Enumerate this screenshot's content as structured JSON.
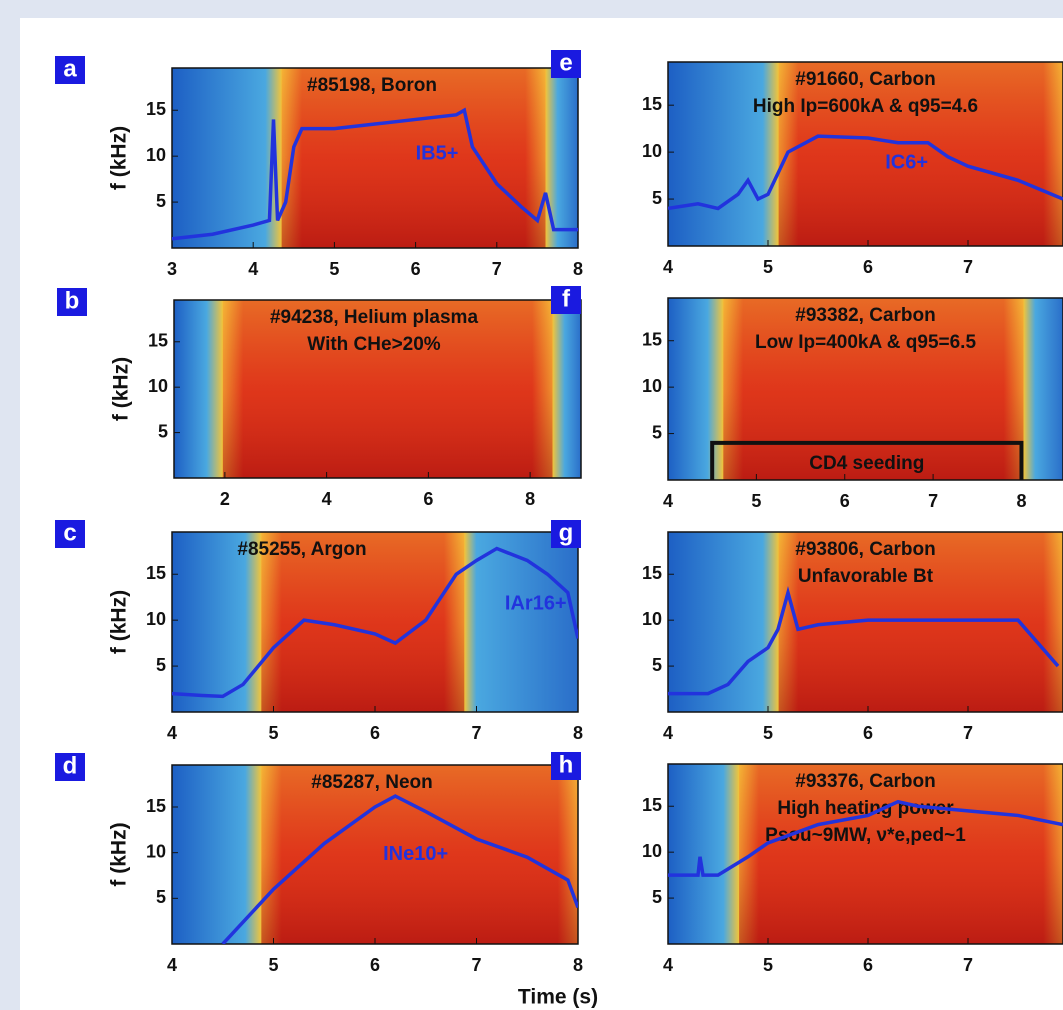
{
  "chart_data": [
    {
      "type": "line",
      "panel": "a",
      "titles": [
        "#85198, Boron"
      ],
      "ylabel": "f (kHz)",
      "xlim": [
        3,
        8
      ],
      "ylim": [
        0,
        19.6
      ],
      "xticks": [
        3,
        4,
        5,
        6,
        7,
        8
      ],
      "yticks": [
        5,
        10,
        15
      ],
      "series": [
        {
          "name": "IB5+",
          "color": "#2233dd",
          "x": [
            3,
            3.5,
            4,
            4.2,
            4.25,
            4.3,
            4.4,
            4.5,
            4.6,
            5,
            5.5,
            6,
            6.5,
            6.6,
            6.7,
            7,
            7.3,
            7.5,
            7.6,
            7.7,
            8
          ],
          "values": [
            1,
            1.5,
            2.5,
            3,
            14,
            3,
            5,
            11,
            13,
            13,
            13.5,
            14,
            14.5,
            15,
            11,
            7,
            4.5,
            3,
            6,
            2,
            2
          ]
        }
      ]
    },
    {
      "type": "spectrogram",
      "panel": "b",
      "titles": [
        "#94238, Helium plasma",
        "With CHe>20%"
      ],
      "ylabel": "f (kHz)",
      "xlim": [
        1,
        9
      ],
      "ylim": [
        0,
        19.6
      ],
      "xticks": [
        2,
        4,
        6,
        8
      ],
      "yticks": [
        5,
        10,
        15
      ],
      "series": []
    },
    {
      "type": "line",
      "panel": "c",
      "titles": [
        "#85255, Argon"
      ],
      "ylabel": "f (kHz)",
      "xlim": [
        4,
        8
      ],
      "ylim": [
        0,
        19.6
      ],
      "xticks": [
        4,
        5,
        6,
        7,
        8
      ],
      "yticks": [
        5,
        10,
        15
      ],
      "series": [
        {
          "name": "IAr16+",
          "color": "#2233dd",
          "x": [
            4,
            4.3,
            4.5,
            4.7,
            5,
            5.3,
            5.6,
            6,
            6.2,
            6.5,
            6.8,
            7,
            7.2,
            7.5,
            7.7,
            7.9,
            8
          ],
          "values": [
            2,
            1.8,
            1.7,
            3,
            7,
            10,
            9.5,
            8.5,
            7.5,
            10,
            15,
            16.5,
            17.8,
            16.5,
            15,
            13,
            8
          ]
        }
      ]
    },
    {
      "type": "line",
      "panel": "d",
      "titles": [
        "#85287, Neon"
      ],
      "ylabel": "f (kHz)",
      "xlabel": "Time (s)",
      "xlim": [
        4,
        8
      ],
      "ylim": [
        0,
        19.6
      ],
      "xticks": [
        4,
        5,
        6,
        7,
        8
      ],
      "yticks": [
        5,
        10,
        15
      ],
      "series": [
        {
          "name": "INe10+",
          "color": "#2233dd",
          "x": [
            4.5,
            5,
            5.5,
            6,
            6.2,
            6.5,
            7,
            7.5,
            7.9,
            8
          ],
          "values": [
            0,
            6,
            11,
            15,
            16.2,
            14.5,
            11.5,
            9.5,
            7,
            4
          ]
        }
      ]
    },
    {
      "type": "line",
      "panel": "e",
      "titles": [
        "#91660, Carbon",
        "High Ip=600kA & q95=4.6"
      ],
      "ylabel": "",
      "xlim": [
        4,
        7.95
      ],
      "ylim": [
        0,
        19.6
      ],
      "xticks": [
        4,
        5,
        6,
        7
      ],
      "yticks": [
        5,
        10,
        15
      ],
      "series": [
        {
          "name": "IC6+",
          "color": "#2233dd",
          "x": [
            4,
            4.3,
            4.5,
            4.7,
            4.8,
            4.9,
            5,
            5.2,
            5.5,
            6,
            6.3,
            6.6,
            6.8,
            7,
            7.5,
            7.95
          ],
          "values": [
            4,
            4.5,
            4,
            5.5,
            7,
            5,
            5.5,
            10,
            11.7,
            11.5,
            11,
            11,
            9.5,
            8.5,
            7,
            5
          ]
        }
      ]
    },
    {
      "type": "spectrogram",
      "panel": "f",
      "titles": [
        "#93382, Carbon",
        "Low Ip=400kA & q95=6.5"
      ],
      "ylabel": "",
      "xlim": [
        4,
        8.47
      ],
      "ylim": [
        0,
        19.6
      ],
      "xticks": [
        4,
        5,
        6,
        7,
        8
      ],
      "yticks": [
        5,
        10,
        15
      ],
      "seeding": {
        "label": "CD4 seeding",
        "range": [
          4.5,
          8
        ],
        "level": 4
      },
      "series": []
    },
    {
      "type": "line",
      "panel": "g",
      "titles": [
        "#93806, Carbon",
        "Unfavorable Bt"
      ],
      "ylabel": "",
      "xlim": [
        4,
        7.95
      ],
      "ylim": [
        0,
        19.6
      ],
      "xticks": [
        4,
        5,
        6,
        7
      ],
      "yticks": [
        5,
        10,
        15
      ],
      "series": [
        {
          "name": "",
          "color": "#2233dd",
          "x": [
            4,
            4.4,
            4.6,
            4.8,
            5,
            5.1,
            5.2,
            5.3,
            5.5,
            6,
            6.5,
            7,
            7.5,
            7.9
          ],
          "values": [
            2,
            2,
            3,
            5.5,
            7,
            9,
            13,
            9,
            9.5,
            10,
            10,
            10,
            10,
            5
          ]
        }
      ]
    },
    {
      "type": "line",
      "panel": "h",
      "titles": [
        "#93376, Carbon",
        "High heating power",
        "Psou~9MW, ν*e,ped~1"
      ],
      "ylabel": "",
      "xlim": [
        4,
        7.95
      ],
      "ylim": [
        0,
        19.6
      ],
      "xticks": [
        4,
        5,
        6,
        7
      ],
      "yticks": [
        5,
        10,
        15
      ],
      "series": [
        {
          "name": "",
          "color": "#2233dd",
          "x": [
            4,
            4.3,
            4.32,
            4.35,
            4.5,
            4.8,
            5,
            5.5,
            6,
            6.3,
            6.5,
            7,
            7.5,
            7.95
          ],
          "values": [
            7.5,
            7.5,
            9.5,
            7.5,
            7.5,
            9.5,
            11,
            13,
            14,
            15.5,
            15,
            14.5,
            14,
            13
          ]
        }
      ]
    }
  ]
}
